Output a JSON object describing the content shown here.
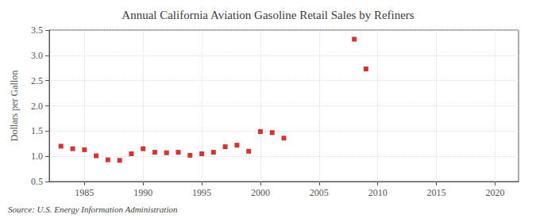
{
  "chart_data": {
    "type": "scatter",
    "title": "Annual California Aviation Gasoline Retail Sales by Refiners",
    "ylabel": "Dollars per Gallon",
    "source": "Source: U.S. Energy Information Administration",
    "x": [
      1983,
      1984,
      1985,
      1986,
      1987,
      1988,
      1989,
      1990,
      1991,
      1992,
      1993,
      1994,
      1995,
      1996,
      1997,
      1998,
      1999,
      2000,
      2001,
      2002,
      2008,
      2009
    ],
    "values": [
      1.2,
      1.15,
      1.13,
      1.01,
      0.93,
      0.92,
      1.05,
      1.15,
      1.08,
      1.07,
      1.08,
      1.02,
      1.05,
      1.08,
      1.19,
      1.22,
      1.1,
      1.49,
      1.47,
      1.36,
      3.32,
      2.73
    ],
    "color": "#cc0000",
    "marker": "square",
    "xlim": [
      1982,
      2022
    ],
    "ylim": [
      0.5,
      3.5
    ],
    "xticks": [
      1985,
      1990,
      1995,
      2000,
      2005,
      2010,
      2015,
      2020
    ],
    "yticks": [
      0.5,
      {
        "value": 1.0,
        "label": "1.0"
      },
      1.5,
      {
        "value": 2.0,
        "label": "2.0"
      },
      2.5,
      {
        "value": 3.0,
        "label": "3.0"
      },
      3.5
    ],
    "grid": true
  }
}
